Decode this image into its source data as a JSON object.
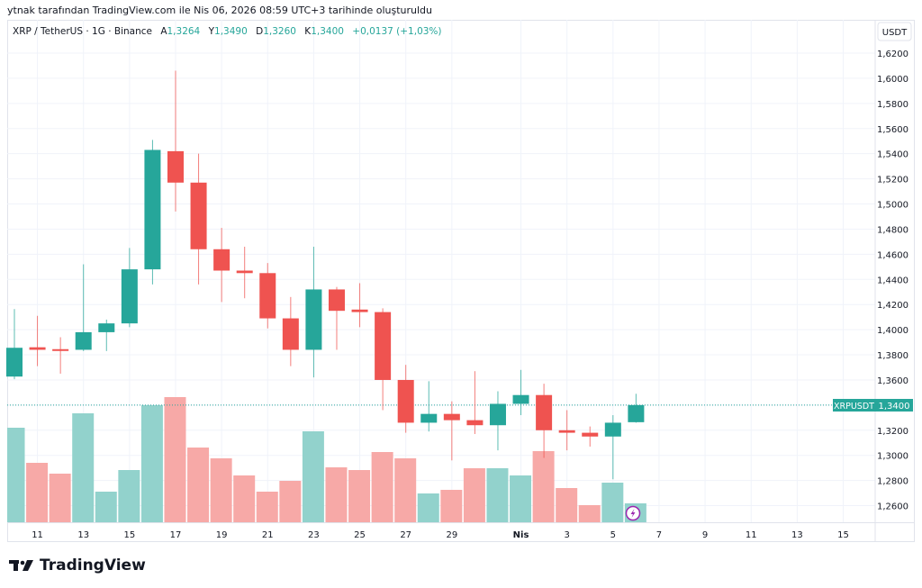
{
  "caption": "ytnak tarafından TradingView.com ile Nis 06, 2026 08:59 UTC+3 tarihinde oluşturuldu",
  "legend": {
    "symbol": "XRP / TetherUS · 1G · Binance",
    "open_label": "A",
    "open": "1,3264",
    "high_label": "Y",
    "high": "1,3490",
    "low_label": "D",
    "low": "1,3260",
    "close_label": "K",
    "close": "1,3400",
    "change": "+0,0137 (+1,03%)"
  },
  "price_axis": {
    "currency": "USDT",
    "last_symbol": "XRPUSDT",
    "last_price": "1,3400"
  },
  "logo": "TradingView",
  "colors": {
    "up": "#26a69a",
    "down": "#ef5350",
    "up_vol": "#92d2cc",
    "down_vol": "#f7a9a7"
  },
  "chart_data": {
    "type": "candlestick",
    "title": "XRP / TetherUS · 1G · Binance",
    "ylim": [
      1.25,
      1.63
    ],
    "y_ticks": [
      "1,2600",
      "1,2800",
      "1,3000",
      "1,3200",
      "1,3400",
      "1,3600",
      "1,3800",
      "1,4000",
      "1,4200",
      "1,4400",
      "1,4600",
      "1,4800",
      "1,5000",
      "1,5200",
      "1,5400",
      "1,5600",
      "1,5800",
      "1,6000",
      "1,6200"
    ],
    "y_tick_values": [
      1.26,
      1.28,
      1.3,
      1.32,
      1.34,
      1.36,
      1.38,
      1.4,
      1.42,
      1.44,
      1.46,
      1.48,
      1.5,
      1.52,
      1.54,
      1.56,
      1.58,
      1.6,
      1.62
    ],
    "x_ticks": [
      {
        "label": "11",
        "index": 1
      },
      {
        "label": "13",
        "index": 3
      },
      {
        "label": "15",
        "index": 5
      },
      {
        "label": "17",
        "index": 7
      },
      {
        "label": "19",
        "index": 9
      },
      {
        "label": "21",
        "index": 11
      },
      {
        "label": "23",
        "index": 13
      },
      {
        "label": "25",
        "index": 15
      },
      {
        "label": "27",
        "index": 17
      },
      {
        "label": "29",
        "index": 19
      },
      {
        "label": "Nis",
        "index": 22
      },
      {
        "label": "3",
        "index": 24
      },
      {
        "label": "5",
        "index": 26
      },
      {
        "label": "7",
        "index": 28
      },
      {
        "label": "9",
        "index": 30
      },
      {
        "label": "11",
        "index": 32
      },
      {
        "label": "13",
        "index": 34
      },
      {
        "label": "15",
        "index": 36
      }
    ],
    "candles": [
      {
        "date": "Mar 10",
        "o": 1.3627,
        "h": 1.4164,
        "l": 1.3606,
        "c": 1.3856,
        "v": 105
      },
      {
        "date": "Mar 11",
        "o": 1.386,
        "h": 1.411,
        "l": 1.371,
        "c": 1.384,
        "v": 66
      },
      {
        "date": "Mar 12",
        "o": 1.3845,
        "h": 1.394,
        "l": 1.365,
        "c": 1.3842,
        "v": 54
      },
      {
        "date": "Mar 13",
        "o": 1.384,
        "h": 1.452,
        "l": 1.383,
        "c": 1.398,
        "v": 121
      },
      {
        "date": "Mar 14",
        "o": 1.398,
        "h": 1.408,
        "l": 1.383,
        "c": 1.405,
        "v": 34
      },
      {
        "date": "Mar 15",
        "o": 1.405,
        "h": 1.465,
        "l": 1.402,
        "c": 1.448,
        "v": 58
      },
      {
        "date": "Mar 16",
        "o": 1.448,
        "h": 1.551,
        "l": 1.436,
        "c": 1.543,
        "v": 130
      },
      {
        "date": "Mar 17",
        "o": 1.542,
        "h": 1.606,
        "l": 1.494,
        "c": 1.517,
        "v": 139
      },
      {
        "date": "Mar 18",
        "o": 1.517,
        "h": 1.54,
        "l": 1.436,
        "c": 1.464,
        "v": 83
      },
      {
        "date": "Mar 19",
        "o": 1.464,
        "h": 1.481,
        "l": 1.422,
        "c": 1.447,
        "v": 71
      },
      {
        "date": "Mar 20",
        "o": 1.447,
        "h": 1.466,
        "l": 1.425,
        "c": 1.445,
        "v": 52
      },
      {
        "date": "Mar 21",
        "o": 1.445,
        "h": 1.453,
        "l": 1.401,
        "c": 1.409,
        "v": 34
      },
      {
        "date": "Mar 22",
        "o": 1.409,
        "h": 1.426,
        "l": 1.371,
        "c": 1.384,
        "v": 46
      },
      {
        "date": "Mar 23",
        "o": 1.384,
        "h": 1.466,
        "l": 1.362,
        "c": 1.432,
        "v": 101
      },
      {
        "date": "Mar 24",
        "o": 1.432,
        "h": 1.434,
        "l": 1.384,
        "c": 1.415,
        "v": 61
      },
      {
        "date": "Mar 25",
        "o": 1.416,
        "h": 1.437,
        "l": 1.402,
        "c": 1.414,
        "v": 58
      },
      {
        "date": "Mar 26",
        "o": 1.414,
        "h": 1.417,
        "l": 1.336,
        "c": 1.36,
        "v": 78
      },
      {
        "date": "Mar 27",
        "o": 1.36,
        "h": 1.372,
        "l": 1.318,
        "c": 1.326,
        "v": 71
      },
      {
        "date": "Mar 28",
        "o": 1.326,
        "h": 1.359,
        "l": 1.319,
        "c": 1.333,
        "v": 32
      },
      {
        "date": "Mar 29",
        "o": 1.333,
        "h": 1.343,
        "l": 1.296,
        "c": 1.328,
        "v": 36
      },
      {
        "date": "Mar 30",
        "o": 1.328,
        "h": 1.367,
        "l": 1.317,
        "c": 1.324,
        "v": 60
      },
      {
        "date": "Mar 31",
        "o": 1.324,
        "h": 1.351,
        "l": 1.304,
        "c": 1.341,
        "v": 60
      },
      {
        "date": "Apr 1",
        "o": 1.341,
        "h": 1.368,
        "l": 1.332,
        "c": 1.348,
        "v": 52
      },
      {
        "date": "Apr 2",
        "o": 1.348,
        "h": 1.357,
        "l": 1.298,
        "c": 1.32,
        "v": 79
      },
      {
        "date": "Apr 3",
        "o": 1.32,
        "h": 1.336,
        "l": 1.304,
        "c": 1.318,
        "v": 38
      },
      {
        "date": "Apr 4",
        "o": 1.318,
        "h": 1.323,
        "l": 1.307,
        "c": 1.315,
        "v": 19
      },
      {
        "date": "Apr 5",
        "o": 1.315,
        "h": 1.332,
        "l": 1.281,
        "c": 1.326,
        "v": 44
      },
      {
        "date": "Apr 6",
        "o": 1.3264,
        "h": 1.349,
        "l": 1.326,
        "c": 1.34,
        "v": 21
      }
    ]
  }
}
